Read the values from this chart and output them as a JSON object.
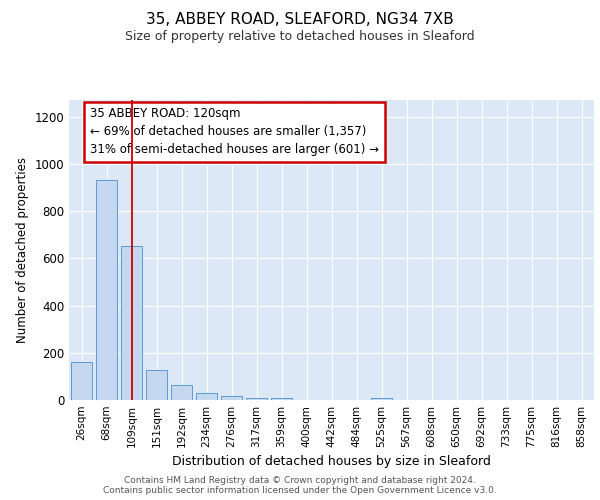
{
  "title_line1": "35, ABBEY ROAD, SLEAFORD, NG34 7XB",
  "title_line2": "Size of property relative to detached houses in Sleaford",
  "xlabel": "Distribution of detached houses by size in Sleaford",
  "ylabel": "Number of detached properties",
  "footer": "Contains HM Land Registry data © Crown copyright and database right 2024.\nContains public sector information licensed under the Open Government Licence v3.0.",
  "categories": [
    "26sqm",
    "68sqm",
    "109sqm",
    "151sqm",
    "192sqm",
    "234sqm",
    "276sqm",
    "317sqm",
    "359sqm",
    "400sqm",
    "442sqm",
    "484sqm",
    "525sqm",
    "567sqm",
    "608sqm",
    "650sqm",
    "692sqm",
    "733sqm",
    "775sqm",
    "816sqm",
    "858sqm"
  ],
  "values": [
    160,
    930,
    650,
    125,
    65,
    30,
    15,
    10,
    10,
    0,
    0,
    0,
    10,
    0,
    0,
    0,
    0,
    0,
    0,
    0,
    0
  ],
  "bar_color": "#c5d8ef",
  "bar_edge_color": "#5b9bd5",
  "bar_edge_width": 0.7,
  "background_color": "#dce8f5",
  "grid_color": "#ffffff",
  "red_line_x": 2.0,
  "annotation_text": "35 ABBEY ROAD: 120sqm\n← 69% of detached houses are smaller (1,357)\n31% of semi-detached houses are larger (601) →",
  "annotation_box_color": "#ffffff",
  "annotation_box_edge_color": "#cc0000",
  "ylim": [
    0,
    1270
  ],
  "yticks": [
    0,
    200,
    400,
    600,
    800,
    1000,
    1200
  ],
  "fig_bg": "#ffffff",
  "title1_fontsize": 11,
  "title2_fontsize": 9
}
